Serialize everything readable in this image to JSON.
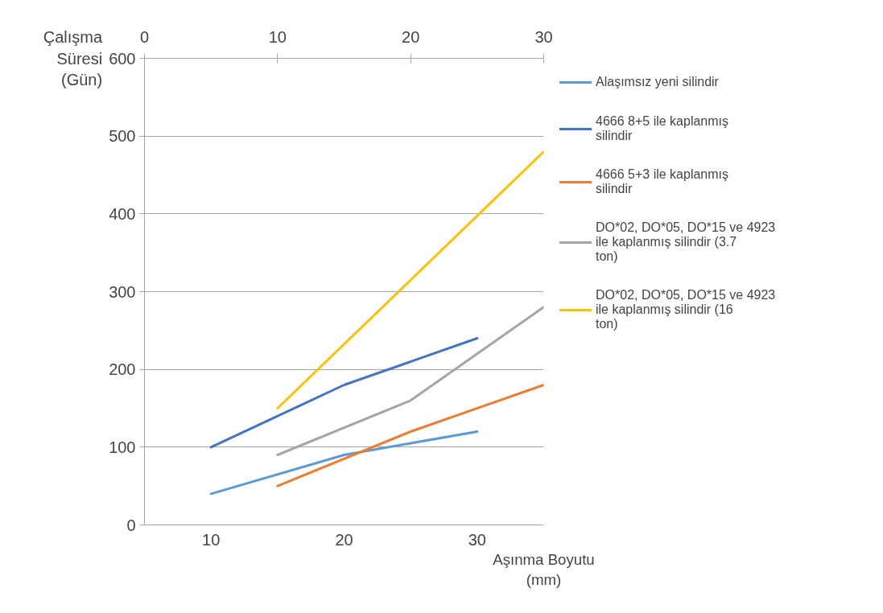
{
  "chart_data": {
    "type": "line",
    "ylabel": "Çalışma Süresi (Gün)",
    "xlabel": "Aşınma Boyutu (mm)",
    "categories": [
      "10",
      "20",
      "30"
    ],
    "x2lim": [
      0,
      30
    ],
    "x2ticks": [
      0,
      10,
      20,
      30
    ],
    "ylim": [
      0,
      600
    ],
    "yticks": [
      0,
      100,
      200,
      300,
      400,
      500,
      600
    ],
    "grid": "y",
    "legend": "right",
    "marker": "none",
    "line_style": "solid",
    "series": [
      {
        "name": "Alaşımsız yeni silindir",
        "color": "#5b9bd5",
        "values": [
          40,
          90,
          120
        ]
      },
      {
        "name": "4666 8+5 ile kaplanmış silindir",
        "color": "#4472c4",
        "values": [
          100,
          180,
          240
        ]
      },
      {
        "name": "4666 5+3 ile kaplanmış silindir",
        "color": "#ed7d31",
        "axis": "x2",
        "x": [
          10,
          20,
          30
        ],
        "values": [
          50,
          120,
          180
        ]
      },
      {
        "name": "DO*02, DO*05, DO*15 ve 4923 ile kaplanmış silindir (3.7 ton)",
        "color": "#a5a5a5",
        "axis": "x2",
        "x": [
          10,
          20,
          30
        ],
        "values": [
          90,
          160,
          280
        ]
      },
      {
        "name": "DO*02, DO*05, DO*15 ve 4923 ile kaplanmış silindir (16 ton)",
        "color": "#ffc000",
        "axis": "x2",
        "x": [
          10,
          20,
          30
        ],
        "values": [
          150,
          315,
          480
        ]
      }
    ]
  }
}
